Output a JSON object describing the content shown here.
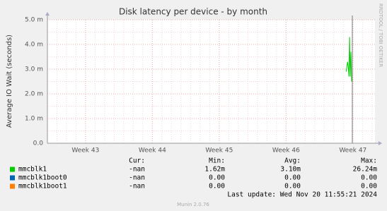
{
  "chart_data": {
    "type": "line",
    "title": "Disk latency per device - by month",
    "y_label": "Average IO Wait (seconds)",
    "side_note": "RRDTOOL / TOBI OETIKER",
    "xlim": [
      42.43,
      47.33
    ],
    "xticks": [
      {
        "value": 43,
        "label": "Week 43"
      },
      {
        "value": 44,
        "label": "Week 44"
      },
      {
        "value": 45,
        "label": "Week 45"
      },
      {
        "value": 46,
        "label": "Week 46"
      },
      {
        "value": 47,
        "label": "Week 47"
      }
    ],
    "ylim": [
      0,
      0.005
    ],
    "yticks": [
      {
        "value": 0,
        "label": "0.0"
      },
      {
        "value": 0.001,
        "label": "1.0 m"
      },
      {
        "value": 0.002,
        "label": "2.0 m"
      },
      {
        "value": 0.003,
        "label": "3.0 m"
      },
      {
        "value": 0.004,
        "label": "4.0 m"
      },
      {
        "value": 0.005,
        "label": "5.0 m"
      }
    ],
    "grid": true,
    "x": [
      46.9,
      46.92,
      46.93,
      46.94,
      46.95,
      46.96,
      46.97,
      46.98
    ],
    "legend_columns": [
      "Cur:",
      "Min:",
      "Avg:",
      "Max:"
    ],
    "series": [
      {
        "name": "mmcblk1",
        "color": "#00cc00",
        "values": [
          0.0029,
          0.0033,
          0.0031,
          0.0027,
          0.0043,
          0.0027,
          0.0037,
          0.0025
        ],
        "stats": [
          "-nan",
          "1.62m",
          "3.10m",
          "26.24m"
        ]
      },
      {
        "name": "mmcblk1boot0",
        "color": "#0066b3",
        "values": [
          null,
          null,
          null,
          null,
          null,
          null,
          null,
          null
        ],
        "stats": [
          "-nan",
          "0.00",
          "0.00",
          "0.00"
        ]
      },
      {
        "name": "mmcblk1boot1",
        "color": "#ff8000",
        "values": [
          null,
          null,
          null,
          null,
          null,
          null,
          null,
          null
        ],
        "stats": [
          "-nan",
          "0.00",
          "0.00",
          "0.00"
        ]
      }
    ],
    "last_update": "Last update: Wed Nov 20 11:55:21 2024",
    "footer": "Munin 2.0.76"
  }
}
